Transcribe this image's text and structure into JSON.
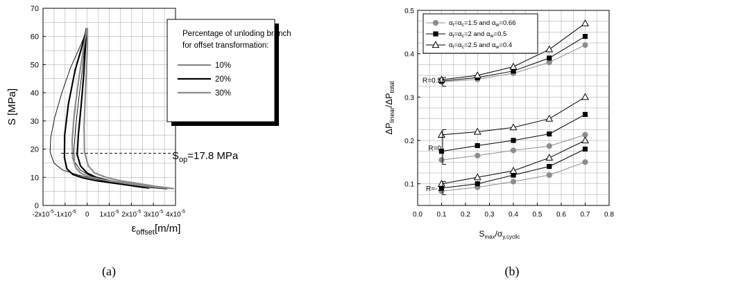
{
  "chart_data": [
    {
      "type": "line",
      "caption": "(a)",
      "ylabel": "S [MPa]",
      "xlabel_main": "ε",
      "xlabel_sub": "offset",
      "xlabel_unit": "[m/m]",
      "xlim": [
        -2e-05,
        4e-05
      ],
      "ylim": [
        0,
        70
      ],
      "x_ticks": [
        {
          "v": -2e-05,
          "base": "-2x10",
          "exp": "-5"
        },
        {
          "v": -1e-05,
          "base": "-1x10",
          "exp": "-5"
        },
        {
          "v": 0,
          "base": "0",
          "exp": ""
        },
        {
          "v": 1e-05,
          "base": "1x10",
          "exp": "-5"
        },
        {
          "v": 2e-05,
          "base": "2x10",
          "exp": "-5"
        },
        {
          "v": 3e-05,
          "base": "3x10",
          "exp": "-5"
        },
        {
          "v": 4e-05,
          "base": "4x10",
          "exp": "-5"
        }
      ],
      "y_ticks": [
        0,
        10,
        20,
        30,
        40,
        50,
        60,
        70
      ],
      "grid": true,
      "legend_title_lines": [
        "Percentage of unloding branch",
        "for offset transformation:"
      ],
      "legend_placement": "top-right",
      "annotation": {
        "main": "S",
        "sub": "op",
        "rest": "=17.8 MPa",
        "y": 18.5
      },
      "series": [
        {
          "name": "10%",
          "color": "#000000",
          "width": 0.9,
          "x": [
            -4.5e-07,
            -8e-07,
            -1.8e-06,
            -4e-06,
            -7.5e-06,
            -1.15e-05,
            -1.48e-05,
            -1.65e-05,
            -1.68e-05,
            -1.5e-05,
            -1.1e-05,
            -4e-06,
            4e-06,
            1.3e-05,
            2.2e-05,
            2.8e-05,
            1.8e-05,
            8e-06,
            1.5e-06,
            -3e-06,
            -5.8e-06,
            -6e-06,
            -5.2e-06,
            -3.8e-06,
            -2.2e-06,
            -1.2e-06,
            -8e-07,
            -3.5e-07
          ],
          "y": [
            63,
            61.5,
            59,
            55,
            49,
            40,
            31,
            24,
            19,
            15,
            12.5,
            10.8,
            9.3,
            7.8,
            6.6,
            6,
            7.3,
            9,
            10.5,
            12.5,
            15.5,
            20,
            28,
            38,
            48,
            56,
            60.5,
            63
          ]
        },
        {
          "name": "20%",
          "color": "#000000",
          "width": 2.2,
          "x": [
            -3.5e-07,
            -8e-07,
            -2.5e-06,
            -5.5e-06,
            -8.5e-06,
            -1.02e-05,
            -1.03e-05,
            -9.2e-06,
            -6.5e-06,
            -2e-06,
            4e-06,
            1.2e-05,
            2e-05,
            2.8e-05,
            3.6e-05,
            2.7e-05,
            1.8e-05,
            1e-05,
            4e-06,
            0,
            -3e-06,
            -4.5e-06,
            -4e-06,
            -2.8e-06,
            -1.6e-06,
            -9e-07,
            -2.5e-07
          ],
          "y": [
            63,
            61,
            56,
            48,
            36,
            25,
            17,
            13,
            11,
            9.8,
            8.8,
            7.9,
            7.1,
            6.5,
            6,
            6.8,
            7.8,
            8.8,
            10,
            11.5,
            14,
            18,
            25,
            35,
            46,
            55,
            63
          ]
        },
        {
          "name": "30%",
          "color": "#8c8c8c",
          "width": 2.2,
          "x": [
            -2e-07,
            -6e-07,
            -1.8e-06,
            -3.8e-06,
            -5.8e-06,
            -6.8e-06,
            -6.6e-06,
            -5.2e-06,
            -3e-06,
            1e-06,
            8e-06,
            1.6e-05,
            2.4e-05,
            3.2e-05,
            3.9e-05,
            3.1e-05,
            2.3e-05,
            1.5e-05,
            8.5e-06,
            3.5e-06,
            5e-07,
            -1.2e-06,
            -1.4e-06,
            -8e-07,
            -2e-07,
            1e-07,
            1e-07
          ],
          "y": [
            63,
            61,
            55,
            45,
            33,
            23,
            17,
            13.5,
            11.5,
            10.2,
            9,
            8,
            7.1,
            6.4,
            6,
            6.8,
            7.8,
            8.8,
            10,
            11.5,
            14,
            19,
            28,
            40,
            50,
            57,
            63
          ]
        }
      ]
    },
    {
      "type": "line",
      "caption": "(b)",
      "ylabel_parts": [
        "ΔP",
        "linear",
        "/ΔP",
        "total"
      ],
      "xlabel_parts": [
        "S",
        "max",
        "/σ",
        "y,cyclic"
      ],
      "xlim": [
        0.0,
        0.8
      ],
      "ylim": [
        0.05,
        0.5
      ],
      "x_ticks": [
        "0.0",
        "0.1",
        "0.2",
        "0.3",
        "0.4",
        "0.5",
        "0.6",
        "0.7",
        "0.8"
      ],
      "y_ticks": [
        "0.1",
        "0.2",
        "0.3",
        "0.4",
        "0.5"
      ],
      "grid": true,
      "legend_placement": "top-left",
      "x": [
        0.1,
        0.25,
        0.4,
        0.55,
        0.7
      ],
      "series": [
        {
          "legend": [
            "α",
            "t",
            "=α",
            "c",
            "=1.5 and α",
            "w",
            "=0.66"
          ],
          "marker": "circle",
          "color": "#8c8c8c",
          "groups": {
            "R=0.5": [
              0.335,
              0.341,
              0.355,
              0.38,
              0.42
            ],
            "R=0": [
              0.155,
              0.165,
              0.177,
              0.187,
              0.213
            ],
            "R=-1": [
              0.083,
              0.092,
              0.105,
              0.12,
              0.15
            ]
          }
        },
        {
          "legend": [
            "α",
            "t",
            "=α",
            "c",
            "=2 and α",
            "w",
            "=0.5"
          ],
          "marker": "square",
          "color": "#000000",
          "groups": {
            "R=0.5": [
              0.337,
              0.345,
              0.36,
              0.39,
              0.44
            ],
            "R=0": [
              0.175,
              0.188,
              0.2,
              0.215,
              0.26
            ],
            "R=-1": [
              0.09,
              0.1,
              0.12,
              0.14,
              0.18
            ]
          }
        },
        {
          "legend": [
            "α",
            "t",
            "=α",
            "c",
            "=2.5 and α",
            "w",
            "=0.4"
          ],
          "marker": "triangle",
          "color": "#000000",
          "groups": {
            "R=0.5": [
              0.34,
              0.35,
              0.37,
              0.41,
              0.47
            ],
            "R=0": [
              0.213,
              0.22,
              0.23,
              0.25,
              0.3
            ],
            "R=-1": [
              0.1,
              0.115,
              0.13,
              0.16,
              0.2
            ]
          }
        }
      ],
      "group_labels": [
        "R=0.5",
        "R=0",
        "R=-1"
      ]
    }
  ]
}
